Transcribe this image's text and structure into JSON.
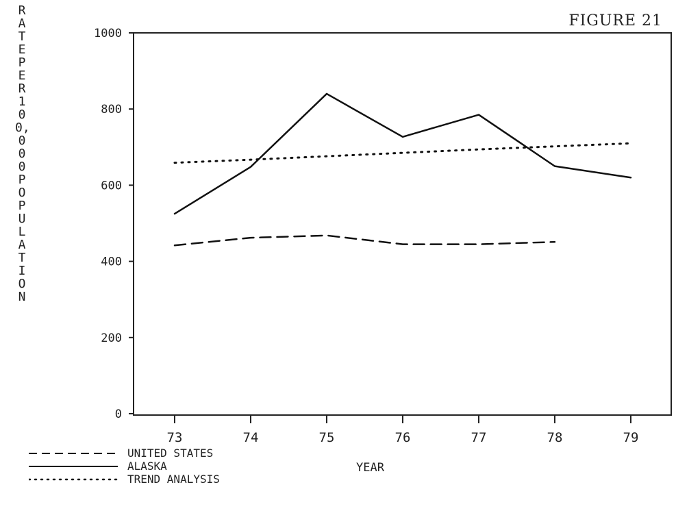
{
  "figure_label": "FIGURE 21",
  "chart_data": {
    "type": "line",
    "title": "",
    "xlabel": "YEAR",
    "ylabel": "RATE PER 100,000 POPULATION",
    "x": [
      73,
      74,
      75,
      76,
      77,
      78,
      79
    ],
    "xticks": [
      "73",
      "74",
      "75",
      "76",
      "77",
      "78",
      "79"
    ],
    "yticks": [
      "0",
      "200",
      "400",
      "600",
      "800",
      "1000"
    ],
    "ylim": [
      0,
      1000
    ],
    "grid": false,
    "legend_position": "bottom-left",
    "series": [
      {
        "name": "UNITED STATES",
        "style": "dashed",
        "color": "#111111",
        "x": [
          73,
          74,
          75,
          76,
          77,
          78
        ],
        "values": [
          442,
          462,
          468,
          445,
          445,
          451
        ]
      },
      {
        "name": "ALASKA",
        "style": "solid",
        "color": "#111111",
        "x": [
          73,
          74,
          75,
          76,
          77,
          78,
          79
        ],
        "values": [
          525,
          648,
          840,
          727,
          785,
          650,
          620
        ]
      },
      {
        "name": "TREND ANALYSIS",
        "style": "dotted",
        "color": "#111111",
        "x": [
          73,
          74,
          75,
          76,
          77,
          78,
          79
        ],
        "values": [
          659,
          667,
          676,
          685,
          694,
          702,
          710
        ]
      }
    ]
  }
}
